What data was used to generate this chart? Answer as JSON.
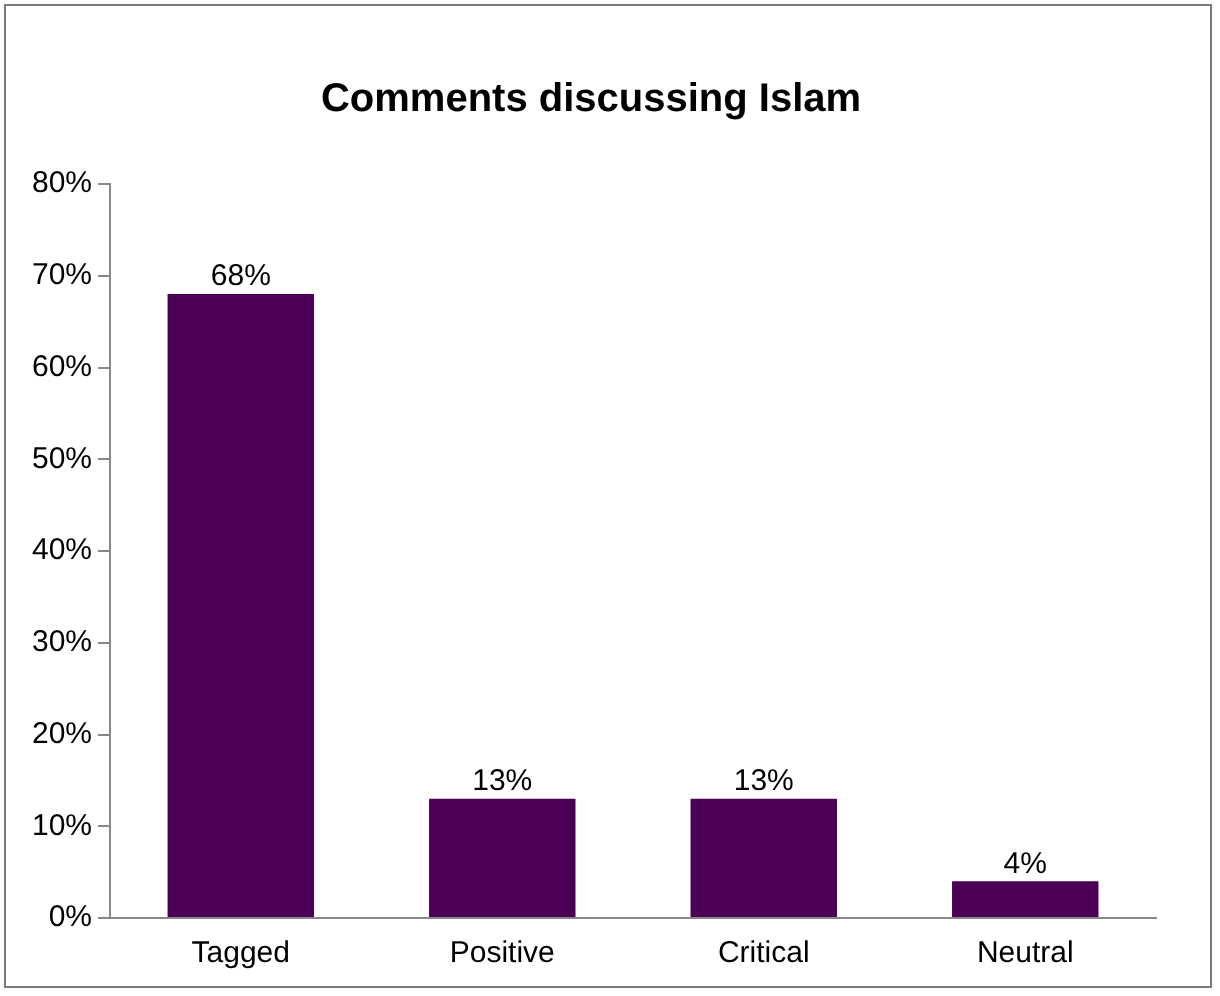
{
  "chart_data": {
    "type": "bar",
    "title": "Comments discussing Islam",
    "categories": [
      "Tagged",
      "Positive",
      "Critical",
      "Neutral"
    ],
    "values": [
      68,
      13,
      13,
      4
    ],
    "color": "#4b0055",
    "value_labels": [
      "68%",
      "13%",
      "13%",
      "4%"
    ],
    "ylim": [
      0,
      80
    ],
    "yticks": [
      {
        "value": 0,
        "label": "0%"
      },
      {
        "value": 10,
        "label": "10%"
      },
      {
        "value": 20,
        "label": "20%"
      },
      {
        "value": 30,
        "label": "30%"
      },
      {
        "value": 40,
        "label": "40%"
      },
      {
        "value": 50,
        "label": "50%"
      },
      {
        "value": 60,
        "label": "60%"
      },
      {
        "value": 70,
        "label": "70%"
      },
      {
        "value": 80,
        "label": "80%"
      }
    ],
    "grid": false,
    "legend": false
  }
}
